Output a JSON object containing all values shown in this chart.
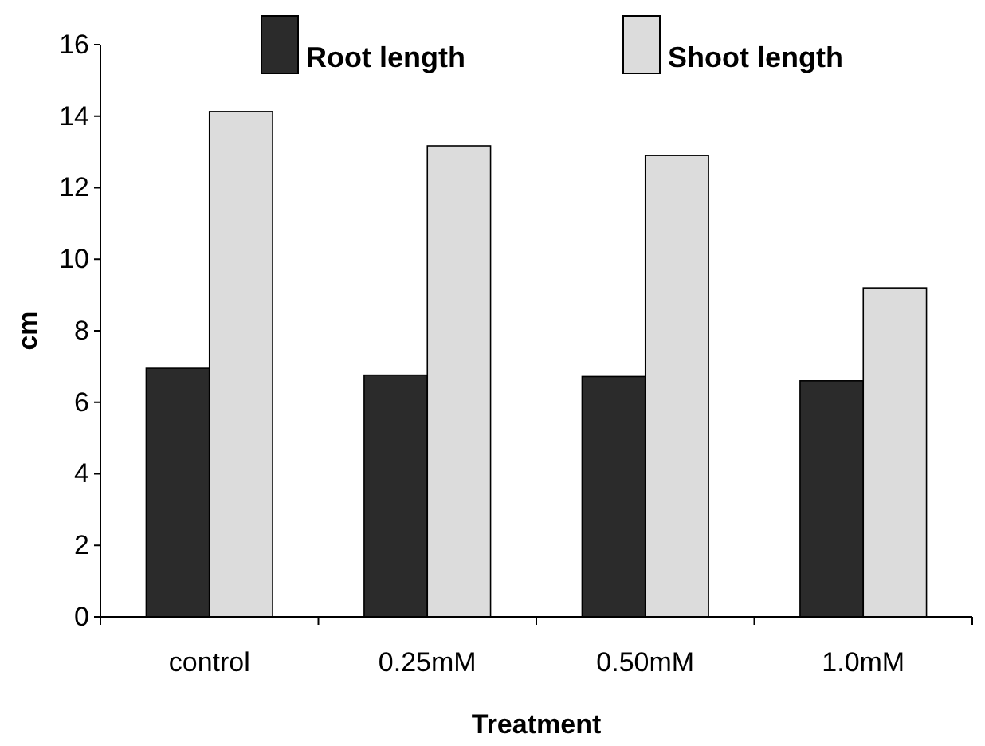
{
  "chart_data": {
    "type": "bar",
    "xlabel": "Treatment",
    "ylabel": "cm",
    "categories": [
      "control",
      "0.25mM",
      "0.50mM",
      "1.0mM"
    ],
    "series": [
      {
        "name": "Root length",
        "color": "#2b2b2b",
        "values": [
          6.95,
          6.76,
          6.72,
          6.6
        ]
      },
      {
        "name": "Shoot length",
        "color": "#dcdcdc",
        "values": [
          14.13,
          13.17,
          12.9,
          9.2
        ]
      }
    ],
    "ylim": [
      0,
      16
    ],
    "yticks": [
      0,
      2,
      4,
      6,
      8,
      10,
      12,
      14,
      16
    ],
    "grid": false,
    "legend": "top"
  }
}
